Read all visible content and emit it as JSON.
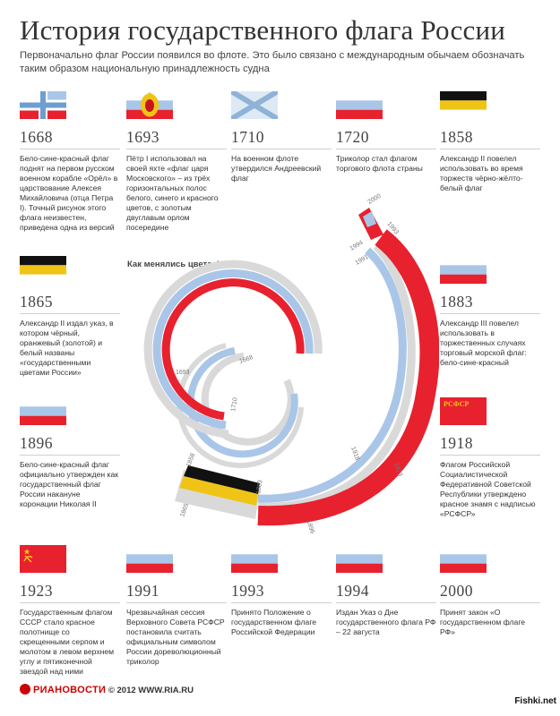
{
  "header": {
    "title": "История государственного флага России",
    "subtitle": "Первоначально флаг России появился во флоте. Это было связано с международным обычаем обозначать таким образом национальную принадлежность судна"
  },
  "cards": [
    {
      "year": "1668",
      "flag": "saint-george-tricolor-flag",
      "description": "Бело-сине-красный флаг поднят на первом русском военном корабле «Орёл» в царствование Алексея Михайловича (отца Петра I). Точный рисунок этого флага неизвестен, приведена одна из версий"
    },
    {
      "year": "1693",
      "flag": "tsar-flag-with-eagle",
      "description": "Пётр I использовал на своей яхте «флаг царя Московского» – из трёх горизонтальных полос белого, синего и красного цветов, с золотым двуглавым орлом посередине"
    },
    {
      "year": "1710",
      "flag": "saint-andrew-flag",
      "description": "На военном флоте утвердился Андреевский флаг"
    },
    {
      "year": "1720",
      "flag": "white-blue-red-flag",
      "description": "Триколор стал флагом торгового флота страны"
    },
    {
      "year": "1858",
      "flag": "black-yellow-white-flag",
      "description": "Александр II повелел использовать во время торжеств чёрно-жёлто-белый флаг"
    },
    {
      "year": "1865",
      "flag": "black-gold-white-flag",
      "description": "Александр II издал указ, в котором чёрный, оранжевый (золотой) и белый названы «государственными цветами России»"
    },
    {
      "year": "1883",
      "flag": "white-blue-red-flag",
      "description": "Александр III повелел использовать в торжественных случаях торговый морской флаг: бело-сине-красный"
    },
    {
      "year": "1896",
      "flag": "white-blue-red-flag",
      "description": "Бело-сине-красный флаг официально утвержден как государственный флаг России накануне коронации Николая II"
    },
    {
      "year": "1918",
      "flag": "rsfsr-flag",
      "description": "Флагом Российской Социалистической Федеративной Советской Республики утверждено красное знамя с надписью «РСФСР»"
    },
    {
      "year": "1923",
      "flag": "ussr-flag",
      "description": "Государственным флагом СССР стало красное полотнище со скрещенными серпом и молотом в левом верхнем углу и пятиконечной звездой над ними"
    },
    {
      "year": "1991",
      "flag": "white-blue-red-flag",
      "description": "Чрезвычайная сессия Верховного Совета РСФСР постановила считать официальным символом России дореволюционный триколор"
    },
    {
      "year": "1993",
      "flag": "white-blue-red-flag",
      "description": "Принято Положение о государственном флаге Российской Федерации"
    },
    {
      "year": "1994",
      "flag": "white-blue-red-flag",
      "description": "Издан Указ о Дне государственного флага РФ – 22 августа"
    },
    {
      "year": "2000",
      "flag": "white-blue-red-flag",
      "description": "Принят закон «О государственном флаге РФ»"
    }
  ],
  "rsfsr_text": "РСФСР",
  "spiral": {
    "title": "Как менялись цвета флага",
    "years": [
      "1668",
      "1693",
      "1710",
      "1858",
      "1865",
      "1883",
      "1896",
      "1918",
      "1923",
      "1991",
      "1993",
      "1994",
      "2000"
    ]
  },
  "footer": {
    "brand": "РИАНОВОСТИ",
    "copyright": "© 2012 WWW.RIA.RU",
    "watermark": "Fishki.net"
  },
  "colors": {
    "white": "#ffffff",
    "blue": "#a9c6e8",
    "red": "#e8212e",
    "black": "#111111",
    "gold": "#f0c416",
    "gray": "#d9d9d9",
    "andrew_bg": "#dde9f4",
    "andrew_cross": "#8fb3d6"
  }
}
